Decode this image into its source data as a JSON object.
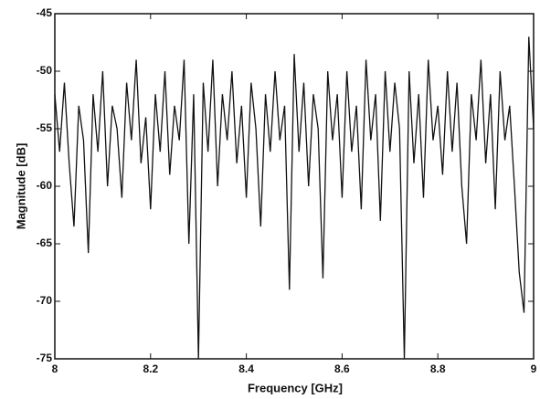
{
  "chart_data": {
    "type": "line",
    "xlabel": "Frequency [GHz]",
    "ylabel": "Magnitude [dB]",
    "x": [
      8.0,
      8.01,
      8.02,
      8.03,
      8.04,
      8.05,
      8.06,
      8.07,
      8.08,
      8.09,
      8.1,
      8.11,
      8.12,
      8.13,
      8.14,
      8.15,
      8.16,
      8.17,
      8.18,
      8.19,
      8.2,
      8.21,
      8.22,
      8.23,
      8.24,
      8.25,
      8.26,
      8.27,
      8.28,
      8.29,
      8.3,
      8.31,
      8.32,
      8.33,
      8.34,
      8.35,
      8.36,
      8.37,
      8.38,
      8.39,
      8.4,
      8.41,
      8.42,
      8.43,
      8.44,
      8.45,
      8.46,
      8.47,
      8.48,
      8.49,
      8.5,
      8.51,
      8.52,
      8.53,
      8.54,
      8.55,
      8.56,
      8.57,
      8.58,
      8.59,
      8.6,
      8.61,
      8.62,
      8.63,
      8.64,
      8.65,
      8.66,
      8.67,
      8.68,
      8.69,
      8.7,
      8.71,
      8.72,
      8.73,
      8.74,
      8.75,
      8.76,
      8.77,
      8.78,
      8.79,
      8.8,
      8.81,
      8.82,
      8.83,
      8.84,
      8.85,
      8.86,
      8.87,
      8.88,
      8.89,
      8.9,
      8.91,
      8.92,
      8.93,
      8.94,
      8.95,
      8.96,
      8.97,
      8.98,
      8.99,
      9.0
    ],
    "series": [
      {
        "name": "Magnitude",
        "color": "#111111",
        "values": [
          -52,
          -57,
          -51,
          -58,
          -63.5,
          -53,
          -56,
          -65.8,
          -52,
          -57,
          -50,
          -60,
          -53,
          -55,
          -61,
          -51,
          -56,
          -49,
          -58,
          -54,
          -62,
          -52,
          -57,
          -50,
          -59,
          -53,
          -56,
          -49,
          -65,
          -52,
          -75,
          -51,
          -57,
          -49,
          -60,
          -52,
          -56,
          -50,
          -58,
          -53,
          -61,
          -51,
          -55,
          -63.5,
          -52,
          -57,
          -50,
          -56,
          -53,
          -69,
          -48.5,
          -57,
          -51,
          -60,
          -52,
          -55,
          -68,
          -50,
          -56,
          -52,
          -61,
          -50,
          -57,
          -53,
          -62,
          -49,
          -56,
          -52,
          -63,
          -50,
          -57,
          -51,
          -55,
          -75,
          -50,
          -58,
          -52,
          -61,
          -49,
          -56,
          -53,
          -59,
          -50,
          -57,
          -51,
          -60,
          -65,
          -52,
          -56,
          -49,
          -58,
          -52,
          -62,
          -50,
          -56,
          -53,
          -60,
          -67.5,
          -71,
          -47,
          -55
        ]
      }
    ],
    "xlim": [
      8,
      9
    ],
    "xticks": [
      8,
      8.2,
      8.4,
      8.6,
      8.8,
      9
    ],
    "ylim": [
      -75,
      -45
    ],
    "yticks": [
      -75,
      -70,
      -65,
      -60,
      -55,
      -50,
      -45
    ],
    "grid": false
  }
}
